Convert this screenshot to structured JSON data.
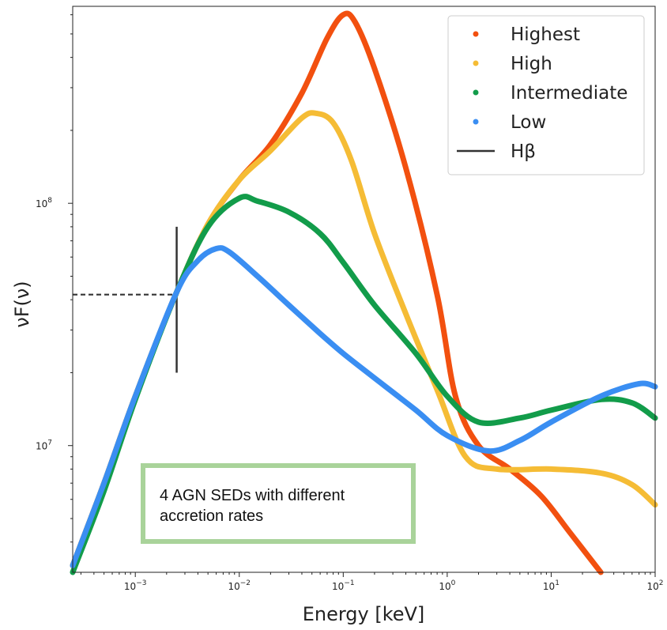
{
  "chart_data": {
    "type": "line",
    "title": "",
    "xlabel": "Energy [keV]",
    "ylabel": "νF(ν)",
    "x_scale": "log",
    "y_scale": "log",
    "xlim": [
      0.00025,
      100
    ],
    "ylim": [
      3000000,
      650000000
    ],
    "grid": false,
    "legend_position": "top-right",
    "x_ticks": [
      {
        "value": 0.001,
        "base": "10",
        "exp": "−3"
      },
      {
        "value": 0.01,
        "base": "10",
        "exp": "−2"
      },
      {
        "value": 0.1,
        "base": "10",
        "exp": "−1"
      },
      {
        "value": 1,
        "base": "10",
        "exp": "0"
      },
      {
        "value": 10,
        "base": "10",
        "exp": "1"
      },
      {
        "value": 100,
        "base": "10",
        "exp": "2"
      }
    ],
    "y_ticks": [
      {
        "value": 10000000,
        "base": "10",
        "exp": "7"
      },
      {
        "value": 100000000,
        "base": "10",
        "exp": "8"
      }
    ],
    "series": [
      {
        "name": "Highest",
        "color": "#f2500f",
        "x": [
          0.00025,
          0.0005,
          0.001,
          0.0025,
          0.005,
          0.01,
          0.02,
          0.04,
          0.07,
          0.1,
          0.13,
          0.2,
          0.4,
          0.8,
          1.2,
          2,
          4,
          8,
          15,
          30
        ],
        "y": [
          3200000,
          7000000,
          16000000,
          43000000,
          82000000,
          125000000,
          175000000,
          285000000,
          480000000,
          600000000,
          560000000,
          360000000,
          140000000,
          42000000,
          16000000,
          10000000,
          8000000,
          6200000,
          4400000,
          3000000
        ]
      },
      {
        "name": "High",
        "color": "#f5bc35",
        "x": [
          0.00025,
          0.0005,
          0.001,
          0.0025,
          0.005,
          0.01,
          0.02,
          0.04,
          0.055,
          0.08,
          0.12,
          0.2,
          0.4,
          0.8,
          1.5,
          3,
          10,
          30,
          60,
          100
        ],
        "y": [
          3200000,
          7000000,
          16000000,
          43000000,
          82000000,
          125000000,
          165000000,
          225000000,
          235000000,
          215000000,
          150000000,
          75000000,
          35000000,
          17000000,
          9000000,
          8000000,
          8000000,
          7700000,
          6900000,
          5700000
        ]
      },
      {
        "name": "Intermediate",
        "color": "#129c4a",
        "x": [
          0.00025,
          0.0005,
          0.001,
          0.0025,
          0.005,
          0.01,
          0.015,
          0.03,
          0.06,
          0.1,
          0.2,
          0.5,
          1,
          2,
          5,
          10,
          30,
          60,
          100
        ],
        "y": [
          3000000,
          6500000,
          15500000,
          43000000,
          80000000,
          105000000,
          102000000,
          92000000,
          75000000,
          57000000,
          38000000,
          24000000,
          16000000,
          12500000,
          13000000,
          14000000,
          15500000,
          15000000,
          13000000
        ]
      },
      {
        "name": "Low",
        "color": "#3a8ef2",
        "x": [
          0.00025,
          0.0005,
          0.001,
          0.0025,
          0.004,
          0.006,
          0.008,
          0.015,
          0.03,
          0.06,
          0.1,
          0.2,
          0.5,
          1,
          2.5,
          5,
          10,
          30,
          70,
          100
        ],
        "y": [
          3200000,
          7000000,
          16000000,
          43000000,
          58000000,
          65000000,
          63000000,
          50000000,
          38000000,
          29000000,
          24000000,
          19000000,
          14000000,
          11000000,
          9500000,
          10500000,
          12500000,
          16000000,
          18000000,
          17500000
        ]
      }
    ],
    "hbeta": {
      "name": "Hβ",
      "x": 0.0025,
      "y": 42000000,
      "y_low": 20000000,
      "y_high": 80000000,
      "color": "#333333"
    }
  },
  "annotation": {
    "line1": "4 AGN SEDs with different",
    "line2": "accretion rates"
  }
}
